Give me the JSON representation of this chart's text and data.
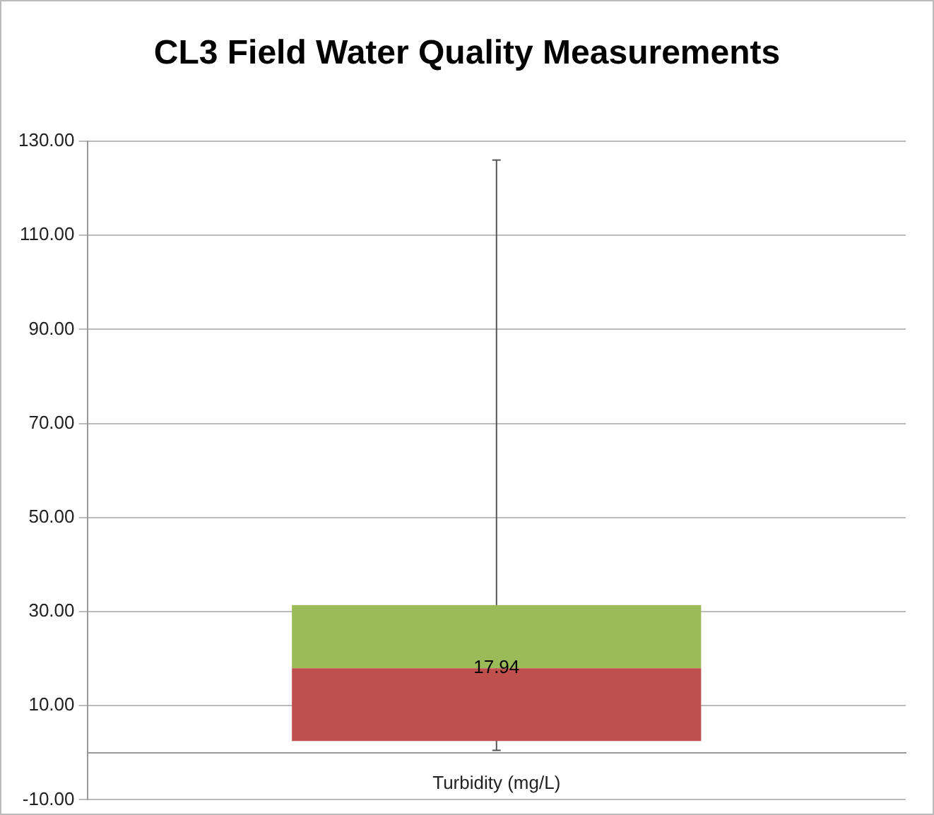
{
  "chart_data": {
    "type": "box",
    "title": "CL3 Field Water Quality Measurements",
    "categories": [
      "Turbidity (mg/L)"
    ],
    "series": [
      {
        "color": "#9bbb59",
        "colors": [
          "#c0504d"
        ],
        "boxes": [
          {
            "low": 0.5,
            "q1": 2.5,
            "median": 17.94,
            "q3": 31.4,
            "high": 126
          }
        ]
      }
    ],
    "ylim": [
      -10,
      130
    ],
    "yticks": [
      {
        "value": -10,
        "label": "-10.00"
      },
      {
        "value": 10,
        "label": "10.00"
      },
      {
        "value": 30,
        "label": "30.00"
      },
      {
        "value": 50,
        "label": "50.00"
      },
      {
        "value": 70,
        "label": "70.00"
      },
      {
        "value": 90,
        "label": "90.00"
      },
      {
        "value": 110,
        "label": "110.00"
      },
      {
        "value": 130,
        "label": "130.00"
      }
    ],
    "grid": "y",
    "legend": false,
    "annotations": [
      {
        "text": "17.94",
        "x": "Turbidity (mg/L)",
        "y": 17.94
      }
    ]
  }
}
